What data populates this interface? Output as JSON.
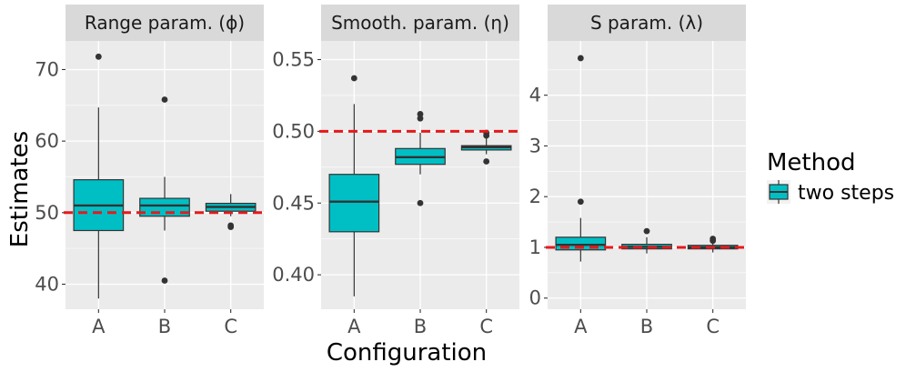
{
  "chart_data": {
    "type": "boxplot",
    "xlabel": "Configuration",
    "ylabel": "Estimates",
    "categories": [
      "A",
      "B",
      "C"
    ],
    "legend": {
      "title": "Method",
      "entries": [
        {
          "label": "two steps",
          "color": "#00bfc4"
        }
      ]
    },
    "colors": {
      "box_fill": "#00bfc4",
      "reference_line": "#e41a1c",
      "panel_bg": "#ebebeb",
      "strip_bg": "#d9d9d9"
    },
    "panels": [
      {
        "title": "Range param. (ϕ)",
        "ylim": [
          36.5,
          74
        ],
        "yticks": [
          40,
          50,
          60,
          70
        ],
        "ytick_labels": [
          "40",
          "50",
          "60",
          "70"
        ],
        "true_value": 50,
        "boxes": [
          {
            "category": "A",
            "whisker_low": 38,
            "q1": 47.5,
            "median": 51,
            "q3": 54.6,
            "whisker_high": 64.7,
            "outliers": [
              71.8
            ]
          },
          {
            "category": "B",
            "whisker_low": 47.5,
            "q1": 49.5,
            "median": 51,
            "q3": 52,
            "whisker_high": 55,
            "outliers": [
              65.8,
              40.5
            ]
          },
          {
            "category": "C",
            "whisker_low": 49.5,
            "q1": 50.2,
            "median": 50.8,
            "q3": 51.3,
            "whisker_high": 52.6,
            "outliers": [
              48,
              48.2
            ]
          }
        ]
      },
      {
        "title": "Smooth. param. (η)",
        "ylim": [
          0.376,
          0.563
        ],
        "yticks": [
          0.4,
          0.45,
          0.5,
          0.55
        ],
        "ytick_labels": [
          "0.40",
          "0.45",
          "0.50",
          "0.55"
        ],
        "true_value": 0.5,
        "boxes": [
          {
            "category": "A",
            "whisker_low": 0.385,
            "q1": 0.43,
            "median": 0.451,
            "q3": 0.47,
            "whisker_high": 0.519,
            "outliers": [
              0.537
            ]
          },
          {
            "category": "B",
            "whisker_low": 0.47,
            "q1": 0.477,
            "median": 0.482,
            "q3": 0.488,
            "whisker_high": 0.499,
            "outliers": [
              0.512,
              0.509,
              0.45
            ]
          },
          {
            "category": "C",
            "whisker_low": 0.484,
            "q1": 0.487,
            "median": 0.489,
            "q3": 0.49,
            "whisker_high": 0.495,
            "outliers": [
              0.499,
              0.497,
              0.479
            ]
          }
        ]
      },
      {
        "title": "S param. (λ)",
        "ylim": [
          -0.22,
          5.07
        ],
        "yticks": [
          0,
          1,
          2,
          3,
          4
        ],
        "ytick_labels": [
          "0",
          "1",
          "2",
          "3",
          "4"
        ],
        "true_value": 1,
        "boxes": [
          {
            "category": "A",
            "whisker_low": 0.72,
            "q1": 0.95,
            "median": 1.05,
            "q3": 1.2,
            "whisker_high": 1.58,
            "outliers": [
              4.73,
              1.9
            ]
          },
          {
            "category": "B",
            "whisker_low": 0.88,
            "q1": 0.97,
            "median": 1.01,
            "q3": 1.06,
            "whisker_high": 1.2,
            "outliers": [
              1.32
            ]
          },
          {
            "category": "C",
            "whisker_low": 0.9,
            "q1": 0.97,
            "median": 1.0,
            "q3": 1.04,
            "whisker_high": 1.12,
            "outliers": [
              1.17,
              1.13
            ]
          }
        ]
      }
    ]
  }
}
